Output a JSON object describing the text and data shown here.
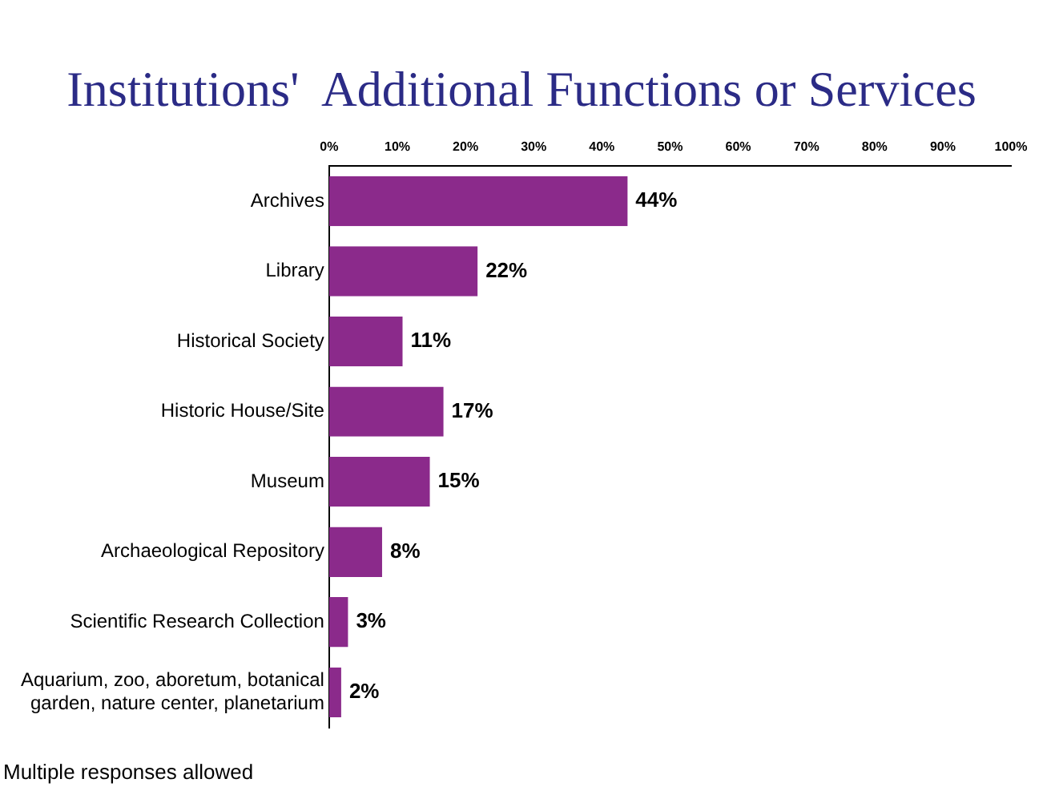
{
  "chart_data": {
    "type": "bar",
    "orientation": "horizontal",
    "title": "Institutions'  Additional Functions or Services",
    "categories": [
      "Archives",
      "Library",
      "Historical Society",
      "Historic House/Site",
      "Museum",
      "Archaeological Repository",
      "Scientific Research Collection",
      "Aquarium, zoo, aboretum, botanical garden, nature center, planetarium"
    ],
    "values": [
      44,
      22,
      11,
      17,
      15,
      8,
      3,
      2
    ],
    "value_labels": [
      "44%",
      "22%",
      "11%",
      "17%",
      "15%",
      "8%",
      "3%",
      "2%"
    ],
    "color": "#8b2a8b",
    "xlim": [
      0,
      100
    ],
    "xticks": [
      {
        "value": 0,
        "label": "0%"
      },
      {
        "value": 10,
        "label": "10%"
      },
      {
        "value": 20,
        "label": "20%"
      },
      {
        "value": 30,
        "label": "30%"
      },
      {
        "value": 40,
        "label": "40%"
      },
      {
        "value": 50,
        "label": "50%"
      },
      {
        "value": 60,
        "label": "60%"
      },
      {
        "value": 70,
        "label": "70%"
      },
      {
        "value": 80,
        "label": "80%"
      },
      {
        "value": 90,
        "label": "90%"
      },
      {
        "value": 100,
        "label": "100%"
      }
    ],
    "grid": false,
    "legend": false,
    "annotations": [
      "Multiple responses allowed"
    ]
  }
}
